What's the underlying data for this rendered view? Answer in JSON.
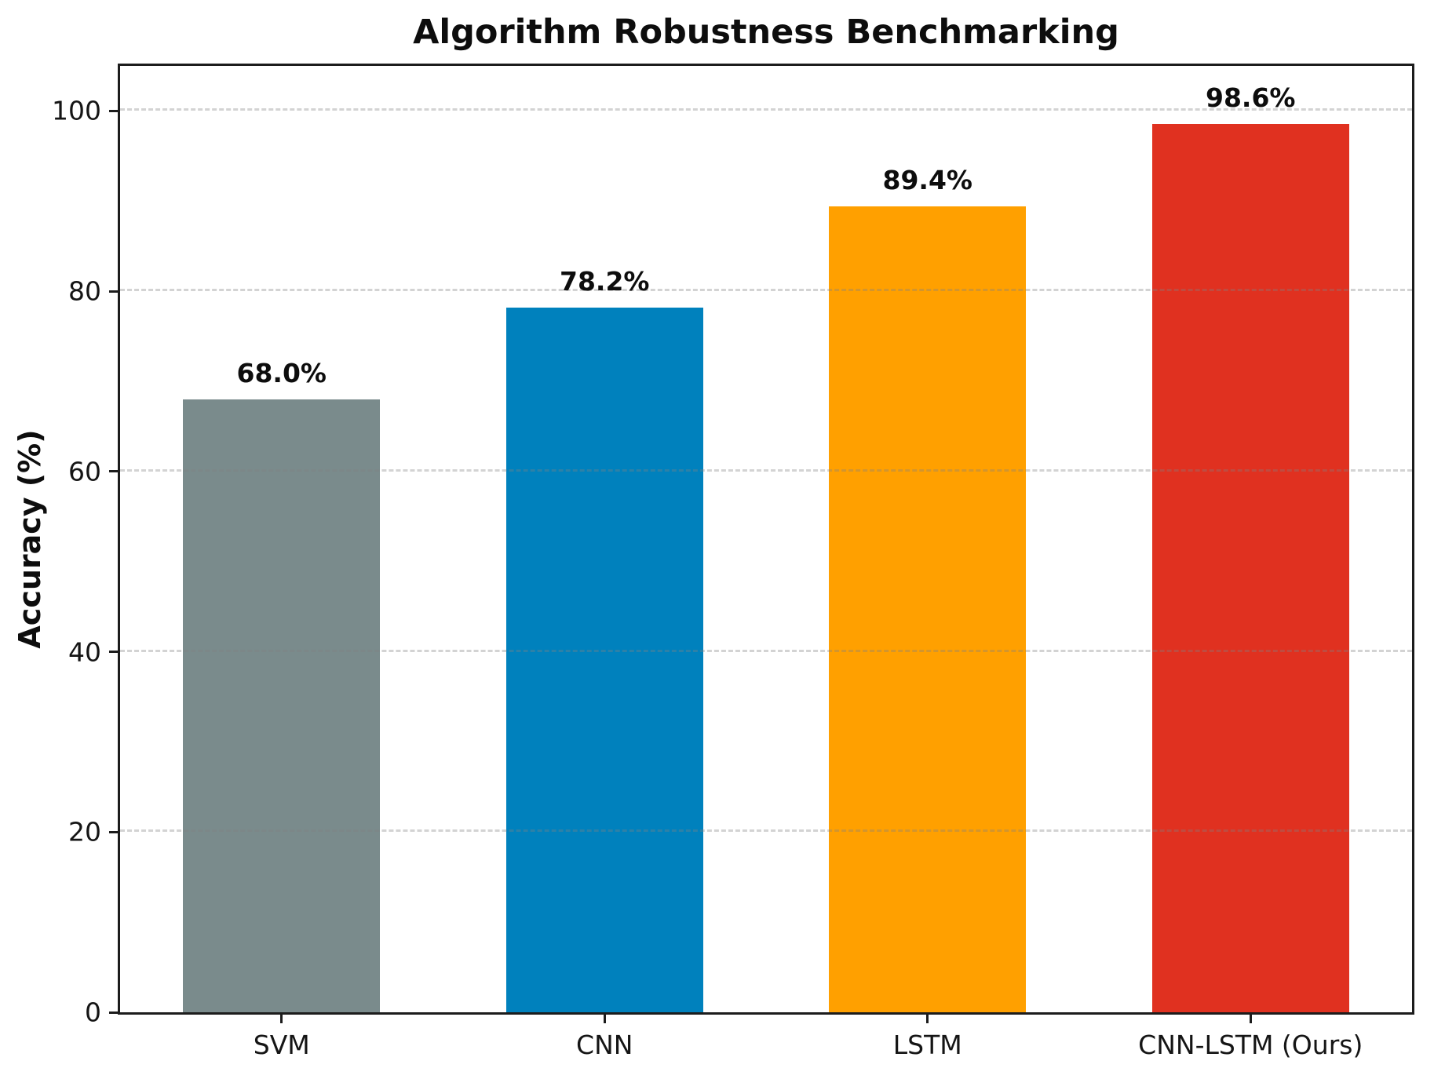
{
  "chart_data": {
    "type": "bar",
    "title": "Algorithm Robustness Benchmarking",
    "ylabel": "Accuracy (%)",
    "xlabel": "",
    "categories": [
      "SVM",
      "CNN",
      "LSTM",
      "CNN-LSTM (Ours)"
    ],
    "values": [
      68.0,
      78.2,
      89.4,
      98.6
    ],
    "value_labels": [
      "68.0%",
      "78.2%",
      "89.4%",
      "98.6%"
    ],
    "bar_colors": [
      "#7a8b8c",
      "#0081bd",
      "#ffa000",
      "#e03120"
    ],
    "ylim": [
      0,
      105
    ],
    "yticks": [
      0,
      20,
      40,
      60,
      80,
      100
    ],
    "grid": "horizontal dashed gridlines at y ticks",
    "legend": "none",
    "spines": "full box",
    "background_color": "#ffffff"
  }
}
